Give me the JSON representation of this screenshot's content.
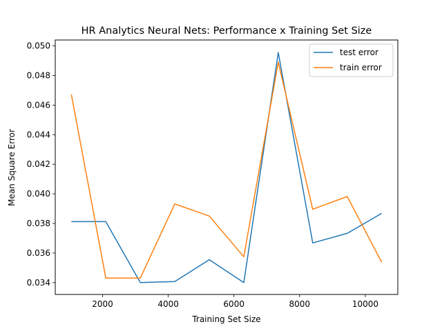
{
  "chart_data": {
    "type": "line",
    "title": "HR Analytics Neural Nets: Performance x Training Set Size",
    "xlabel": "Training Set Size",
    "ylabel": "Mean Square Error",
    "xlim": [
      560,
      10990
    ],
    "ylim": [
      0.0332,
      0.0504
    ],
    "xticks": [
      2000,
      4000,
      6000,
      8000,
      10000
    ],
    "xtick_labels": [
      "2000",
      "4000",
      "6000",
      "8000",
      "10000"
    ],
    "yticks": [
      0.034,
      0.036,
      0.038,
      0.04,
      0.042,
      0.044,
      0.046,
      0.048,
      0.05
    ],
    "ytick_labels": [
      "0.034",
      "0.036",
      "0.038",
      "0.040",
      "0.042",
      "0.044",
      "0.046",
      "0.048",
      "0.050"
    ],
    "x": [
      1050,
      2100,
      3150,
      4200,
      5250,
      6300,
      7350,
      8400,
      9450,
      10500
    ],
    "series": [
      {
        "name": "test error",
        "color": "#1f77b4",
        "values": [
          0.03812,
          0.03812,
          0.034,
          0.03407,
          0.03555,
          0.034,
          0.04955,
          0.03668,
          0.03733,
          0.03868
        ]
      },
      {
        "name": "train error",
        "color": "#ff7f0e",
        "values": [
          0.04672,
          0.03431,
          0.03431,
          0.03932,
          0.0385,
          0.03575,
          0.0489,
          0.03896,
          0.03982,
          0.03537
        ]
      }
    ],
    "grid": false,
    "legend_position": "top-right"
  }
}
